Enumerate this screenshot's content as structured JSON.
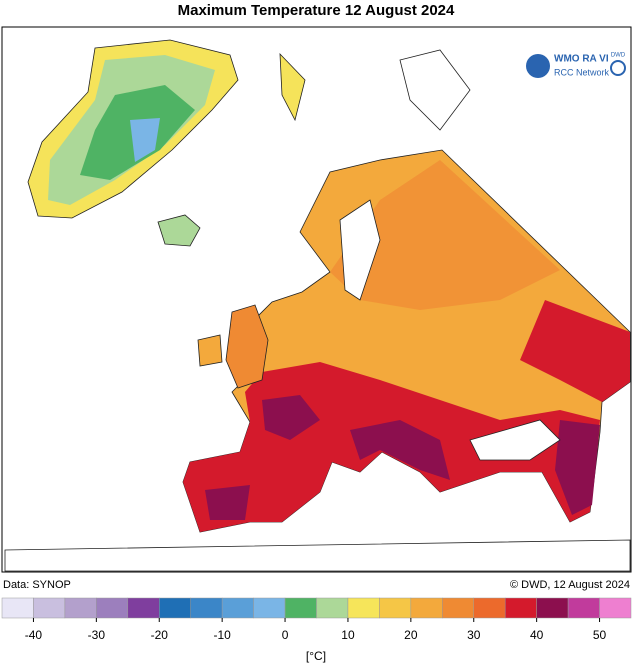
{
  "header": {
    "title": "Maximum Temperature 12 August 2024",
    "logo": {
      "wmo": "WMO RA VI",
      "network": "RCC Network",
      "dwd": "DWD"
    }
  },
  "footer": {
    "source": "Data: SYNOP",
    "copyright": "© DWD, 12 August 2024"
  },
  "colorbar": {
    "bins": [
      -45,
      -40,
      -35,
      -30,
      -25,
      -20,
      -15,
      -10,
      -5,
      0,
      5,
      10,
      15,
      20,
      25,
      30,
      35,
      40,
      45,
      50,
      55
    ],
    "colors": [
      "#e8e6f6",
      "#c9bfdf",
      "#b3a0cc",
      "#9c7fbd",
      "#7f3e9e",
      "#1f6fb5",
      "#3b86c8",
      "#5a9fd8",
      "#7ab5e6",
      "#4fb364",
      "#acd898",
      "#f6e55a",
      "#f5c646",
      "#f3a93c",
      "#ef8a33",
      "#ec6a2c",
      "#d41a2c",
      "#8c0f4e",
      "#c13b9c",
      "#ee7fd0"
    ],
    "ticks": [
      -40,
      -30,
      -20,
      -10,
      0,
      10,
      20,
      30,
      40,
      50
    ],
    "label": "[°C]"
  }
}
